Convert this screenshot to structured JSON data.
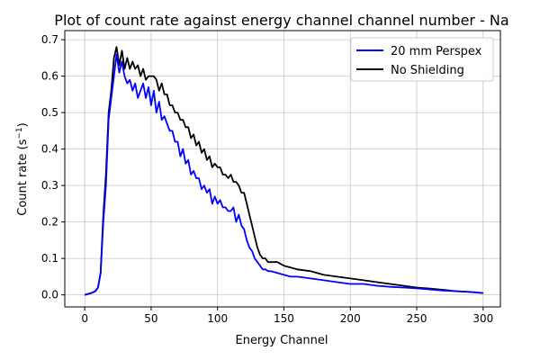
{
  "chart_data": {
    "type": "line",
    "title": "Plot of count rate against energy channel channel number - Na",
    "xlabel": "Energy Channel",
    "ylabel_main": "Count rate (s",
    "ylabel_sup": "−1",
    "ylabel_close": ")",
    "xlim": [
      -15,
      313
    ],
    "ylim": [
      -0.033,
      0.725
    ],
    "xticks": [
      0,
      50,
      100,
      150,
      200,
      250,
      300
    ],
    "yticks": [
      0.0,
      0.1,
      0.2,
      0.3,
      0.4,
      0.5,
      0.6,
      0.7
    ],
    "xtick_labels": [
      "0",
      "50",
      "100",
      "150",
      "200",
      "250",
      "300"
    ],
    "ytick_labels": [
      "0.0",
      "0.1",
      "0.2",
      "0.3",
      "0.4",
      "0.5",
      "0.6",
      "0.7"
    ],
    "grid": true,
    "legend_position": "upper-right",
    "series": [
      {
        "name": "20 mm Perspex",
        "color": "#0000ff",
        "x": [
          0,
          5,
          8,
          10,
          12,
          14,
          16,
          18,
          20,
          22,
          24,
          26,
          28,
          30,
          32,
          34,
          36,
          38,
          40,
          42,
          44,
          46,
          48,
          50,
          52,
          54,
          56,
          58,
          60,
          62,
          64,
          66,
          68,
          70,
          72,
          74,
          76,
          78,
          80,
          82,
          84,
          86,
          88,
          90,
          92,
          94,
          96,
          98,
          100,
          102,
          104,
          106,
          108,
          110,
          112,
          114,
          116,
          118,
          120,
          122,
          124,
          126,
          128,
          130,
          132,
          134,
          136,
          138,
          140,
          145,
          150,
          155,
          160,
          170,
          180,
          190,
          200,
          210,
          220,
          230,
          240,
          250,
          260,
          270,
          280,
          290,
          300
        ],
        "y": [
          0.0,
          0.005,
          0.01,
          0.02,
          0.06,
          0.2,
          0.3,
          0.48,
          0.54,
          0.6,
          0.66,
          0.61,
          0.64,
          0.6,
          0.58,
          0.59,
          0.56,
          0.58,
          0.54,
          0.56,
          0.58,
          0.54,
          0.57,
          0.52,
          0.56,
          0.5,
          0.53,
          0.48,
          0.49,
          0.47,
          0.45,
          0.45,
          0.42,
          0.42,
          0.38,
          0.4,
          0.36,
          0.37,
          0.33,
          0.34,
          0.32,
          0.32,
          0.29,
          0.3,
          0.28,
          0.29,
          0.25,
          0.27,
          0.25,
          0.26,
          0.24,
          0.24,
          0.23,
          0.23,
          0.24,
          0.2,
          0.22,
          0.19,
          0.18,
          0.15,
          0.13,
          0.12,
          0.1,
          0.09,
          0.08,
          0.07,
          0.07,
          0.065,
          0.065,
          0.06,
          0.055,
          0.05,
          0.05,
          0.045,
          0.04,
          0.035,
          0.03,
          0.03,
          0.025,
          0.022,
          0.02,
          0.018,
          0.015,
          0.012,
          0.01,
          0.008,
          0.005
        ]
      },
      {
        "name": "No Shielding",
        "color": "#000000",
        "x": [
          0,
          5,
          8,
          10,
          12,
          14,
          16,
          18,
          20,
          22,
          24,
          26,
          28,
          30,
          32,
          34,
          36,
          38,
          40,
          42,
          44,
          46,
          48,
          50,
          52,
          54,
          56,
          58,
          60,
          62,
          64,
          66,
          68,
          70,
          72,
          74,
          76,
          78,
          80,
          82,
          84,
          86,
          88,
          90,
          92,
          94,
          96,
          98,
          100,
          102,
          104,
          106,
          108,
          110,
          112,
          114,
          116,
          118,
          120,
          122,
          124,
          126,
          128,
          130,
          132,
          134,
          136,
          138,
          140,
          145,
          150,
          155,
          160,
          170,
          180,
          190,
          200,
          210,
          220,
          230,
          240,
          250,
          260,
          270,
          280,
          290,
          300
        ],
        "y": [
          0.0,
          0.005,
          0.01,
          0.02,
          0.06,
          0.22,
          0.33,
          0.5,
          0.56,
          0.65,
          0.68,
          0.63,
          0.67,
          0.62,
          0.65,
          0.62,
          0.64,
          0.62,
          0.63,
          0.6,
          0.62,
          0.59,
          0.6,
          0.6,
          0.6,
          0.59,
          0.56,
          0.58,
          0.55,
          0.55,
          0.52,
          0.52,
          0.5,
          0.5,
          0.48,
          0.48,
          0.46,
          0.46,
          0.43,
          0.44,
          0.41,
          0.42,
          0.39,
          0.4,
          0.37,
          0.38,
          0.35,
          0.36,
          0.35,
          0.35,
          0.33,
          0.33,
          0.32,
          0.33,
          0.31,
          0.31,
          0.3,
          0.28,
          0.28,
          0.25,
          0.22,
          0.19,
          0.16,
          0.13,
          0.11,
          0.1,
          0.1,
          0.09,
          0.09,
          0.09,
          0.08,
          0.075,
          0.07,
          0.065,
          0.055,
          0.05,
          0.045,
          0.04,
          0.035,
          0.03,
          0.025,
          0.02,
          0.017,
          0.014,
          0.01,
          0.008,
          0.005
        ]
      }
    ]
  }
}
